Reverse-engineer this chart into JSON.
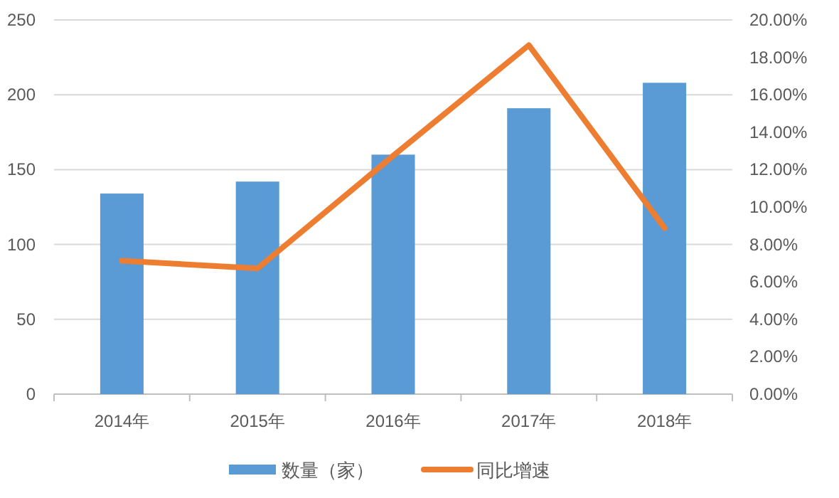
{
  "chart_data": {
    "type": "bar",
    "categories": [
      "2014年",
      "2015年",
      "2016年",
      "2017年",
      "2018年"
    ],
    "series": [
      {
        "name": "数量（家）",
        "color": "#5b9bd5",
        "values": [
          134,
          142,
          160,
          191,
          208
        ]
      },
      {
        "name": "同比增速",
        "type": "line",
        "axis": "y2",
        "color": "#ed7d31",
        "values": [
          7.13,
          6.72,
          12.74,
          18.65,
          8.88
        ]
      }
    ],
    "ylim": [
      0,
      250
    ],
    "yticks": [
      0,
      50,
      100,
      150,
      200,
      250
    ],
    "y2lim": [
      0,
      20
    ],
    "y2ticks": [
      {
        "value": 0,
        "label": "0.00%"
      },
      {
        "value": 2,
        "label": "2.00%"
      },
      {
        "value": 4,
        "label": "4.00%"
      },
      {
        "value": 6,
        "label": "6.00%"
      },
      {
        "value": 8,
        "label": "8.00%"
      },
      {
        "value": 10,
        "label": "10.00%"
      },
      {
        "value": 12,
        "label": "12.00%"
      },
      {
        "value": 14,
        "label": "14.00%"
      },
      {
        "value": 16,
        "label": "16.00%"
      },
      {
        "value": 18,
        "label": "18.00%"
      },
      {
        "value": 20,
        "label": "20.00%"
      }
    ],
    "grid": "y",
    "legend": "bottom",
    "marker": "none"
  }
}
